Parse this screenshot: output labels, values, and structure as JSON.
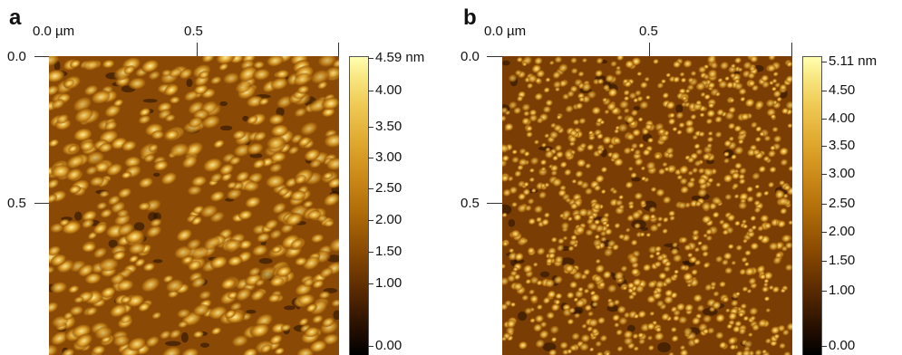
{
  "panels": [
    {
      "letter": "a",
      "x_ticks": [
        "0.0 µm",
        "0.5"
      ],
      "y_ticks": [
        "0.0",
        "0.5"
      ],
      "colorbar_labels": [
        "4.59 nm",
        "4.00",
        "3.50",
        "3.00",
        "2.50",
        "2.00",
        "1.50",
        "1.00",
        "0.00"
      ],
      "image": "AFM height map with elongated golden grains"
    },
    {
      "letter": "b",
      "x_ticks": [
        "0.0 µm",
        "0.5"
      ],
      "y_ticks": [
        "0.0",
        "0.5"
      ],
      "colorbar_labels": [
        "5.11 nm",
        "4.50",
        "4.00",
        "3.50",
        "3.00",
        "2.50",
        "2.00",
        "1.50",
        "1.00",
        "0.00"
      ],
      "image": "AFM height map with fine dense grains"
    }
  ],
  "colors": {
    "dark": "#3a1a00",
    "mid": "#a8640a",
    "bright": "#f4d060"
  }
}
